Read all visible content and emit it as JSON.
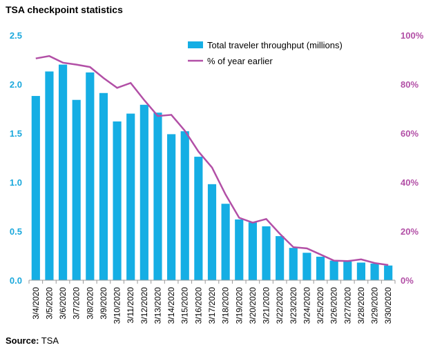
{
  "chart_data": {
    "type": "bar",
    "title": "TSA checkpoint statistics",
    "source_label": "Source:",
    "source_value": "TSA",
    "categories": [
      "3/4/2020",
      "3/5/2020",
      "3/6/2020",
      "3/7/2020",
      "3/8/2020",
      "3/9/2020",
      "3/10/2020",
      "3/11/2020",
      "3/12/2020",
      "3/13/2020",
      "3/14/2020",
      "3/15/2020",
      "3/16/2020",
      "3/17/2020",
      "3/18/2020",
      "3/19/2020",
      "3/20/2020",
      "3/21/2020",
      "3/22/2020",
      "3/23/2020",
      "3/24/2020",
      "3/25/2020",
      "3/26/2020",
      "3/27/2020",
      "3/28/2020",
      "3/29/2020",
      "3/30/2020"
    ],
    "series": [
      {
        "name": "Total traveler throughput (millions)",
        "kind": "bar",
        "axis": "left",
        "color": "#15aee4",
        "values": [
          1.88,
          2.13,
          2.2,
          1.84,
          2.12,
          1.91,
          1.62,
          1.7,
          1.79,
          1.71,
          1.49,
          1.52,
          1.26,
          0.98,
          0.78,
          0.62,
          0.59,
          0.55,
          0.45,
          0.33,
          0.28,
          0.24,
          0.2,
          0.19,
          0.18,
          0.17,
          0.15
        ]
      },
      {
        "name": "% of year earlier",
        "kind": "line",
        "axis": "right",
        "color": "#b24fa6",
        "values": [
          90.5,
          91.5,
          88.8,
          88.0,
          87.0,
          82.5,
          78.5,
          80.5,
          73.5,
          67.0,
          67.5,
          61.0,
          52.5,
          46.0,
          35.0,
          25.5,
          23.5,
          25.0,
          19.0,
          13.5,
          13.0,
          10.5,
          8.0,
          7.8,
          8.5,
          7.0,
          6.2
        ]
      }
    ],
    "y_left": {
      "min": 0,
      "max": 2.5,
      "ticks": [
        "0.0",
        "0.5",
        "1.0",
        "1.5",
        "2.0",
        "2.5"
      ]
    },
    "y_right": {
      "min": 0,
      "max": 100,
      "ticks": [
        "0%",
        "20%",
        "40%",
        "60%",
        "80%",
        "100%"
      ]
    },
    "legend_position": "top-right",
    "grid": false
  }
}
